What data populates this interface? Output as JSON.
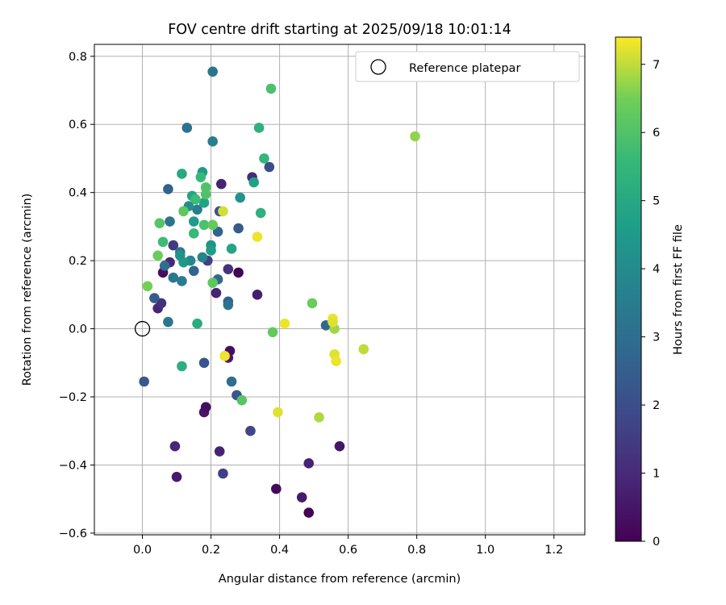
{
  "chart_data": {
    "type": "scatter",
    "title": "FOV centre drift starting at 2025/09/18 10:01:14",
    "xlabel": "Angular distance from reference (arcmin)",
    "ylabel": "Rotation from reference (arcmin)",
    "xlim": [
      -0.14,
      1.29
    ],
    "ylim": [
      -0.605,
      0.835
    ],
    "xticks": [
      0.0,
      0.2,
      0.4,
      0.6,
      0.8,
      1.0,
      1.2
    ],
    "xtick_labels": [
      "0.0",
      "0.2",
      "0.4",
      "0.6",
      "0.8",
      "1.0",
      "1.2"
    ],
    "yticks": [
      -0.6,
      -0.4,
      -0.2,
      0.0,
      0.2,
      0.4,
      0.6,
      0.8
    ],
    "ytick_labels": [
      "−0.6",
      "−0.4",
      "−0.2",
      "0.0",
      "0.2",
      "0.4",
      "0.6",
      "0.8"
    ],
    "grid": true,
    "legend": {
      "position": "top-right",
      "entries": [
        {
          "label": "Reference platepar",
          "marker": "open-circle"
        }
      ]
    },
    "reference_point": {
      "x": 0.0,
      "y": 0.0
    },
    "colorbar": {
      "label": "Hours from first FF file",
      "colormap": "viridis",
      "range": [
        0,
        7.4
      ],
      "ticks": [
        0,
        1,
        2,
        3,
        4,
        5,
        6,
        7
      ],
      "tick_labels": [
        "0",
        "1",
        "2",
        "3",
        "4",
        "5",
        "6",
        "7"
      ]
    },
    "points": [
      {
        "x": 0.485,
        "y": -0.54,
        "c": 0.0
      },
      {
        "x": 0.39,
        "y": -0.47,
        "c": 0.2
      },
      {
        "x": 0.465,
        "y": -0.495,
        "c": 0.6
      },
      {
        "x": 0.485,
        "y": -0.395,
        "c": 0.8
      },
      {
        "x": 0.575,
        "y": -0.345,
        "c": 0.5
      },
      {
        "x": 0.1,
        "y": -0.435,
        "c": 0.6
      },
      {
        "x": 0.095,
        "y": -0.345,
        "c": 0.9
      },
      {
        "x": 0.225,
        "y": -0.36,
        "c": 0.8
      },
      {
        "x": 0.18,
        "y": -0.245,
        "c": 0.5
      },
      {
        "x": 0.185,
        "y": -0.23,
        "c": 0.3
      },
      {
        "x": 0.255,
        "y": -0.065,
        "c": 0.3
      },
      {
        "x": 0.25,
        "y": -0.085,
        "c": 0.6
      },
      {
        "x": 0.335,
        "y": 0.1,
        "c": 0.7
      },
      {
        "x": 0.28,
        "y": 0.165,
        "c": 0.1
      },
      {
        "x": 0.215,
        "y": 0.105,
        "c": 0.8
      },
      {
        "x": 0.06,
        "y": 0.165,
        "c": 0.3
      },
      {
        "x": 0.045,
        "y": 0.06,
        "c": 0.9
      },
      {
        "x": 0.23,
        "y": 0.425,
        "c": 0.8
      },
      {
        "x": 0.32,
        "y": 0.445,
        "c": 1.0
      },
      {
        "x": 0.08,
        "y": 0.195,
        "c": 0.9
      },
      {
        "x": 0.235,
        "y": -0.425,
        "c": 1.6
      },
      {
        "x": 0.315,
        "y": -0.3,
        "c": 1.8
      },
      {
        "x": 0.055,
        "y": 0.075,
        "c": 1.2
      },
      {
        "x": 0.25,
        "y": 0.175,
        "c": 1.2
      },
      {
        "x": 0.09,
        "y": 0.245,
        "c": 1.4
      },
      {
        "x": 0.19,
        "y": 0.2,
        "c": 1.6
      },
      {
        "x": 0.37,
        "y": 0.475,
        "c": 2.0
      },
      {
        "x": 0.225,
        "y": 0.345,
        "c": 2.0
      },
      {
        "x": 0.18,
        "y": -0.1,
        "c": 2.2
      },
      {
        "x": 0.275,
        "y": -0.195,
        "c": 2.2
      },
      {
        "x": 0.005,
        "y": -0.155,
        "c": 2.3
      },
      {
        "x": 0.28,
        "y": 0.295,
        "c": 2.4
      },
      {
        "x": 0.075,
        "y": 0.41,
        "c": 2.6
      },
      {
        "x": 0.25,
        "y": 0.08,
        "c": 2.5
      },
      {
        "x": 0.035,
        "y": 0.09,
        "c": 2.4
      },
      {
        "x": 0.22,
        "y": 0.285,
        "c": 2.7
      },
      {
        "x": 0.15,
        "y": 0.17,
        "c": 2.7
      },
      {
        "x": 0.22,
        "y": 0.145,
        "c": 2.8
      },
      {
        "x": 0.535,
        "y": 0.01,
        "c": 2.8
      },
      {
        "x": 0.26,
        "y": -0.155,
        "c": 2.9
      },
      {
        "x": 0.065,
        "y": 0.185,
        "c": 3.0
      },
      {
        "x": 0.205,
        "y": 0.755,
        "c": 3.2
      },
      {
        "x": 0.13,
        "y": 0.59,
        "c": 3.1
      },
      {
        "x": 0.075,
        "y": 0.02,
        "c": 3.3
      },
      {
        "x": 0.09,
        "y": 0.15,
        "c": 3.3
      },
      {
        "x": 0.11,
        "y": 0.225,
        "c": 3.4
      },
      {
        "x": 0.25,
        "y": 0.07,
        "c": 3.2
      },
      {
        "x": 0.08,
        "y": 0.315,
        "c": 3.2
      },
      {
        "x": 0.115,
        "y": 0.14,
        "c": 3.5
      },
      {
        "x": 0.205,
        "y": 0.55,
        "c": 3.6
      },
      {
        "x": 0.16,
        "y": 0.35,
        "c": 3.6
      },
      {
        "x": 0.175,
        "y": 0.21,
        "c": 3.8
      },
      {
        "x": 0.14,
        "y": 0.2,
        "c": 3.9
      },
      {
        "x": 0.135,
        "y": 0.36,
        "c": 4.1
      },
      {
        "x": 0.285,
        "y": 0.385,
        "c": 4.3
      },
      {
        "x": 0.2,
        "y": 0.245,
        "c": 4.3
      },
      {
        "x": 0.11,
        "y": 0.215,
        "c": 4.2
      },
      {
        "x": 0.12,
        "y": 0.195,
        "c": 4.4
      },
      {
        "x": 0.175,
        "y": 0.46,
        "c": 4.5
      },
      {
        "x": 0.15,
        "y": 0.315,
        "c": 4.5
      },
      {
        "x": 0.2,
        "y": 0.23,
        "c": 4.6
      },
      {
        "x": 0.325,
        "y": 0.43,
        "c": 4.7
      },
      {
        "x": 0.145,
        "y": 0.39,
        "c": 4.8
      },
      {
        "x": 0.18,
        "y": 0.37,
        "c": 4.8
      },
      {
        "x": 0.26,
        "y": 0.235,
        "c": 4.9
      },
      {
        "x": 0.115,
        "y": 0.455,
        "c": 5.0
      },
      {
        "x": 0.34,
        "y": 0.59,
        "c": 5.3
      },
      {
        "x": 0.16,
        "y": 0.015,
        "c": 5.1
      },
      {
        "x": 0.345,
        "y": 0.34,
        "c": 5.3
      },
      {
        "x": 0.115,
        "y": -0.11,
        "c": 5.2
      },
      {
        "x": 0.355,
        "y": 0.5,
        "c": 5.5
      },
      {
        "x": 0.17,
        "y": 0.445,
        "c": 5.6
      },
      {
        "x": 0.15,
        "y": 0.28,
        "c": 5.6
      },
      {
        "x": 0.155,
        "y": 0.38,
        "c": 5.7
      },
      {
        "x": 0.06,
        "y": 0.255,
        "c": 5.7
      },
      {
        "x": 0.375,
        "y": 0.705,
        "c": 5.9
      },
      {
        "x": 0.18,
        "y": 0.305,
        "c": 5.9
      },
      {
        "x": 0.185,
        "y": 0.395,
        "c": 6.0
      },
      {
        "x": 0.185,
        "y": 0.415,
        "c": 6.0
      },
      {
        "x": 0.05,
        "y": 0.31,
        "c": 6.1
      },
      {
        "x": 0.12,
        "y": 0.345,
        "c": 6.2
      },
      {
        "x": 0.205,
        "y": 0.135,
        "c": 6.2
      },
      {
        "x": 0.205,
        "y": 0.305,
        "c": 6.3
      },
      {
        "x": 0.045,
        "y": 0.215,
        "c": 6.4
      },
      {
        "x": 0.015,
        "y": 0.125,
        "c": 6.5
      },
      {
        "x": 0.38,
        "y": -0.01,
        "c": 6.3
      },
      {
        "x": 0.29,
        "y": -0.21,
        "c": 6.1
      },
      {
        "x": 0.495,
        "y": 0.075,
        "c": 6.4
      },
      {
        "x": 0.795,
        "y": 0.565,
        "c": 6.7
      },
      {
        "x": 0.515,
        "y": -0.26,
        "c": 6.9
      },
      {
        "x": 0.56,
        "y": 0.0,
        "c": 6.8
      },
      {
        "x": 0.235,
        "y": 0.345,
        "c": 7.1
      },
      {
        "x": 0.335,
        "y": 0.27,
        "c": 7.3
      },
      {
        "x": 0.395,
        "y": -0.245,
        "c": 7.2
      },
      {
        "x": 0.415,
        "y": 0.015,
        "c": 7.3
      },
      {
        "x": 0.24,
        "y": -0.08,
        "c": 7.3
      },
      {
        "x": 0.555,
        "y": 0.03,
        "c": 7.3
      },
      {
        "x": 0.555,
        "y": 0.02,
        "c": 7.2
      },
      {
        "x": 0.56,
        "y": -0.075,
        "c": 7.2
      },
      {
        "x": 0.565,
        "y": -0.095,
        "c": 7.3
      },
      {
        "x": 0.645,
        "y": -0.06,
        "c": 7.0
      }
    ]
  }
}
